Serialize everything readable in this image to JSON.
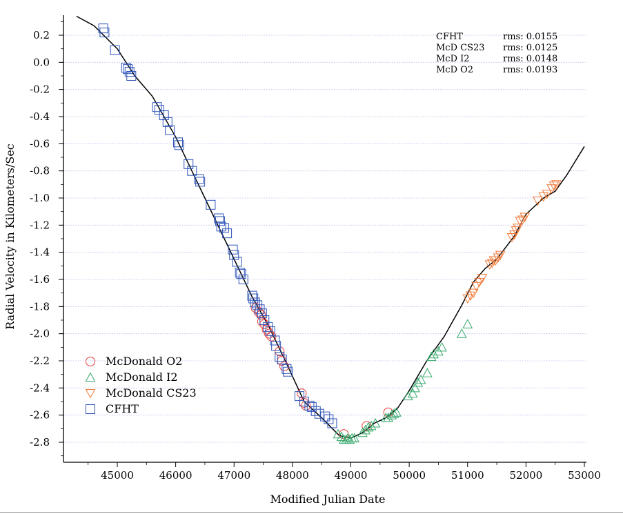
{
  "chart_data": {
    "type": "scatter",
    "title": "",
    "xlabel": "Modified Julian Date",
    "ylabel": "Radial Velocity in Kilometers/Sec",
    "xlim": [
      44200,
      53000
    ],
    "ylim": [
      -2.93,
      0.36
    ],
    "x_ticks": [
      45000,
      46000,
      47000,
      48000,
      49000,
      50000,
      51000,
      52000,
      53000
    ],
    "y_ticks": [
      0.2,
      0.0,
      -0.2,
      -0.4,
      -0.6,
      -0.8,
      -1.0,
      -1.2,
      -1.4,
      -1.6,
      -1.8,
      -2.0,
      -2.2,
      -2.4,
      -2.6,
      -2.8
    ],
    "x_tick_labels": [
      "45000",
      "46000",
      "47000",
      "48000",
      "49000",
      "50000",
      "51000",
      "52000",
      "53000"
    ],
    "y_tick_labels": [
      "0.2",
      "0.0",
      "-0.2",
      "-0.4",
      "-0.6",
      "-0.8",
      "-1.0",
      "-1.2",
      "-1.4",
      "-1.6",
      "-1.8",
      "-2.0",
      "-2.2",
      "-2.4",
      "-2.6",
      "-2.8"
    ],
    "grid": "horizontal dotted",
    "legend_position": "bottom-left",
    "rms_box": [
      {
        "name": "CFHT",
        "rms": "rms: 0.0155"
      },
      {
        "name": "McD CS23",
        "rms": "rms: 0.0125"
      },
      {
        "name": "McD I2",
        "rms": "rms: 0.0148"
      },
      {
        "name": "McD O2",
        "rms": "rms: 0.0193"
      }
    ],
    "fit_curve": [
      [
        44300,
        0.34
      ],
      [
        44600,
        0.27
      ],
      [
        45000,
        0.1
      ],
      [
        45300,
        -0.1
      ],
      [
        45600,
        -0.25
      ],
      [
        46000,
        -0.55
      ],
      [
        46500,
        -1.0
      ],
      [
        47000,
        -1.45
      ],
      [
        47300,
        -1.72
      ],
      [
        47600,
        -1.95
      ],
      [
        47900,
        -2.22
      ],
      [
        48200,
        -2.5
      ],
      [
        48500,
        -2.62
      ],
      [
        48800,
        -2.75
      ],
      [
        49000,
        -2.77
      ],
      [
        49200,
        -2.73
      ],
      [
        49400,
        -2.66
      ],
      [
        49600,
        -2.62
      ],
      [
        49800,
        -2.55
      ],
      [
        50000,
        -2.42
      ],
      [
        50300,
        -2.2
      ],
      [
        50600,
        -2.02
      ],
      [
        50900,
        -1.79
      ],
      [
        51100,
        -1.62
      ],
      [
        51300,
        -1.52
      ],
      [
        51500,
        -1.45
      ],
      [
        51800,
        -1.28
      ],
      [
        52000,
        -1.12
      ],
      [
        52300,
        -1.0
      ],
      [
        52500,
        -0.95
      ],
      [
        52700,
        -0.83
      ],
      [
        53000,
        -0.62
      ]
    ],
    "series": [
      {
        "name": "McDonald O2",
        "marker": "circle",
        "color": "#e8403a",
        "points": [
          [
            47370,
            -1.81
          ],
          [
            47420,
            -1.84
          ],
          [
            47460,
            -1.86
          ],
          [
            47480,
            -1.91
          ],
          [
            47520,
            -1.93
          ],
          [
            47560,
            -1.97
          ],
          [
            47600,
            -2.0
          ],
          [
            47640,
            -2.02
          ],
          [
            47780,
            -2.13
          ],
          [
            47820,
            -2.2
          ],
          [
            47860,
            -2.24
          ],
          [
            48160,
            -2.44
          ],
          [
            48200,
            -2.51
          ],
          [
            48230,
            -2.53
          ],
          [
            48880,
            -2.74
          ],
          [
            49270,
            -2.68
          ],
          [
            49640,
            -2.58
          ]
        ]
      },
      {
        "name": "McDonald I2",
        "marker": "triangle-up",
        "color": "#35a86a",
        "points": [
          [
            48780,
            -2.74
          ],
          [
            48840,
            -2.76
          ],
          [
            48880,
            -2.78
          ],
          [
            48920,
            -2.78
          ],
          [
            48950,
            -2.77
          ],
          [
            48980,
            -2.78
          ],
          [
            49020,
            -2.77
          ],
          [
            49060,
            -2.77
          ],
          [
            49200,
            -2.73
          ],
          [
            49250,
            -2.71
          ],
          [
            49300,
            -2.69
          ],
          [
            49350,
            -2.68
          ],
          [
            49420,
            -2.66
          ],
          [
            49600,
            -2.62
          ],
          [
            49640,
            -2.62
          ],
          [
            49700,
            -2.6
          ],
          [
            49740,
            -2.59
          ],
          [
            49780,
            -2.58
          ],
          [
            49980,
            -2.46
          ],
          [
            50060,
            -2.44
          ],
          [
            50100,
            -2.4
          ],
          [
            50150,
            -2.36
          ],
          [
            50200,
            -2.34
          ],
          [
            50310,
            -2.29
          ],
          [
            50380,
            -2.17
          ],
          [
            50420,
            -2.15
          ],
          [
            50500,
            -2.13
          ],
          [
            50560,
            -2.1
          ],
          [
            50900,
            -2.0
          ],
          [
            51000,
            -1.93
          ]
        ]
      },
      {
        "name": "McDonald CS23",
        "marker": "triangle-down",
        "color": "#f07a3a",
        "points": [
          [
            51000,
            -1.74
          ],
          [
            51050,
            -1.72
          ],
          [
            51100,
            -1.7
          ],
          [
            51150,
            -1.65
          ],
          [
            51200,
            -1.62
          ],
          [
            51250,
            -1.59
          ],
          [
            51380,
            -1.49
          ],
          [
            51420,
            -1.48
          ],
          [
            51450,
            -1.46
          ],
          [
            51480,
            -1.46
          ],
          [
            51520,
            -1.44
          ],
          [
            51560,
            -1.42
          ],
          [
            51760,
            -1.29
          ],
          [
            51800,
            -1.27
          ],
          [
            51830,
            -1.24
          ],
          [
            51860,
            -1.22
          ],
          [
            51900,
            -1.17
          ],
          [
            51940,
            -1.16
          ],
          [
            51980,
            -1.14
          ],
          [
            52200,
            -1.02
          ],
          [
            52300,
            -0.99
          ],
          [
            52360,
            -0.97
          ],
          [
            52440,
            -0.93
          ],
          [
            52480,
            -0.91
          ],
          [
            52520,
            -0.9
          ]
        ]
      },
      {
        "name": "CFHT",
        "marker": "square",
        "color": "#2f54b8",
        "points": [
          [
            44760,
            0.25
          ],
          [
            44780,
            0.22
          ],
          [
            44960,
            0.09
          ],
          [
            45150,
            -0.04
          ],
          [
            45180,
            -0.05
          ],
          [
            45210,
            -0.07
          ],
          [
            45240,
            -0.1
          ],
          [
            45680,
            -0.33
          ],
          [
            45720,
            -0.35
          ],
          [
            45800,
            -0.39
          ],
          [
            45860,
            -0.44
          ],
          [
            45900,
            -0.5
          ],
          [
            46040,
            -0.59
          ],
          [
            46060,
            -0.61
          ],
          [
            46220,
            -0.75
          ],
          [
            46280,
            -0.8
          ],
          [
            46400,
            -0.86
          ],
          [
            46420,
            -0.88
          ],
          [
            46600,
            -1.05
          ],
          [
            46740,
            -1.15
          ],
          [
            46760,
            -1.17
          ],
          [
            46780,
            -1.21
          ],
          [
            46830,
            -1.22
          ],
          [
            46880,
            -1.26
          ],
          [
            46980,
            -1.38
          ],
          [
            47000,
            -1.42
          ],
          [
            47050,
            -1.47
          ],
          [
            47100,
            -1.55
          ],
          [
            47120,
            -1.56
          ],
          [
            47160,
            -1.6
          ],
          [
            47310,
            -1.72
          ],
          [
            47330,
            -1.74
          ],
          [
            47360,
            -1.77
          ],
          [
            47400,
            -1.79
          ],
          [
            47440,
            -1.82
          ],
          [
            47480,
            -1.85
          ],
          [
            47520,
            -1.9
          ],
          [
            47580,
            -1.95
          ],
          [
            47620,
            -1.98
          ],
          [
            47700,
            -2.05
          ],
          [
            47720,
            -2.09
          ],
          [
            47780,
            -2.17
          ],
          [
            47820,
            -2.19
          ],
          [
            47900,
            -2.26
          ],
          [
            47920,
            -2.28
          ],
          [
            48120,
            -2.46
          ],
          [
            48200,
            -2.5
          ],
          [
            48290,
            -2.53
          ],
          [
            48330,
            -2.54
          ],
          [
            48400,
            -2.57
          ],
          [
            48460,
            -2.59
          ],
          [
            48560,
            -2.61
          ],
          [
            48620,
            -2.63
          ],
          [
            48680,
            -2.66
          ]
        ]
      }
    ]
  }
}
